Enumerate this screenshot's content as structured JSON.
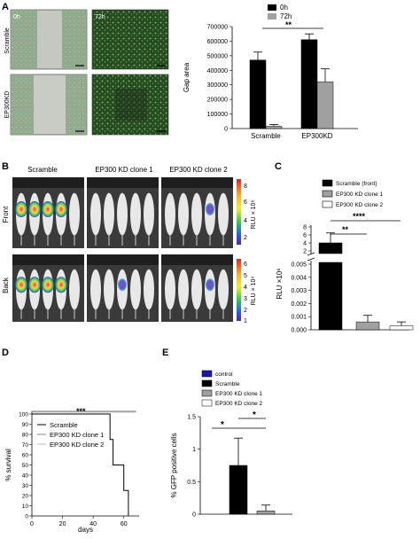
{
  "panels": {
    "A": {
      "letter": "A",
      "time_labels": [
        "0h",
        "72h"
      ],
      "row_labels": [
        "Scramble",
        "EP300KD"
      ],
      "legend": [
        "0h",
        "72h"
      ],
      "significance": "**",
      "colors": {
        "bar_0h": "#000000",
        "bar_72h": "#a0a0a0"
      }
    },
    "B": {
      "letter": "B",
      "column_labels": [
        "Scramble",
        "EP300 KD clone 1",
        "EP300 KD clone 2"
      ],
      "row_labels": [
        "Front",
        "Back"
      ],
      "scale_front": {
        "label": "RLU × 10⁶",
        "ticks": [
          "8",
          "6",
          "4",
          "2"
        ]
      },
      "scale_back": {
        "label": "RLU × 10⁴",
        "ticks": [
          "6",
          "5",
          "4",
          "3",
          "2",
          "1"
        ]
      }
    },
    "C": {
      "letter": "C",
      "legend": [
        "Scramble (front)",
        "EP300 KD clone 1",
        "EP300 KD clone 2"
      ],
      "sig": [
        "**",
        "****"
      ]
    },
    "D": {
      "letter": "D",
      "legend": [
        "Scramble",
        "EP300 KD clone 1",
        "EP300 KD clone 2"
      ],
      "sig": "***"
    },
    "E": {
      "letter": "E",
      "legend": [
        "control",
        "Scramble",
        "EP300 KD clone 1",
        "EP300 KD clone 2"
      ],
      "sig": [
        "*",
        "*"
      ],
      "colors": {
        "control": "#1a1aa8"
      }
    }
  },
  "chart_data": [
    {
      "panel": "A",
      "type": "bar",
      "categories": [
        "Scramble",
        "EP300KD"
      ],
      "series": [
        {
          "name": "0h",
          "values": [
            470000,
            610000
          ],
          "errors": [
            55000,
            40000
          ]
        },
        {
          "name": "72h",
          "values": [
            15000,
            320000
          ],
          "errors": [
            12000,
            90000
          ]
        }
      ],
      "ylabel": "Gap area",
      "ylim": [
        0,
        700000
      ],
      "yticks": [
        "0",
        "100000",
        "200000",
        "300000",
        "400000",
        "500000",
        "600000",
        "700000"
      ]
    },
    {
      "panel": "C",
      "type": "bar",
      "categories": [
        "Scramble (front)",
        "EP300 KD clone 1",
        "EP300 KD clone 2"
      ],
      "values": [
        4.0,
        0.0006,
        0.0003
      ],
      "errors": [
        2.5,
        0.0005,
        0.0003
      ],
      "ylabel": "RLU ×10⁶",
      "yticks_upper": [
        "8",
        "6",
        "4",
        "2"
      ],
      "yticks_lower": [
        "0.005",
        "0.004",
        "0.003",
        "0.002",
        "0.001",
        "0.000"
      ]
    },
    {
      "panel": "D",
      "type": "line",
      "xlabel": "days",
      "ylabel": "% survival",
      "xlim": [
        0,
        70
      ],
      "ylim": [
        0,
        100
      ],
      "xticks": [
        "0",
        "20",
        "40",
        "60"
      ],
      "yticks": [
        "0",
        "10",
        "20",
        "30",
        "40",
        "50",
        "60",
        "70",
        "80",
        "90",
        "100"
      ],
      "series": [
        {
          "name": "Scramble",
          "points": [
            [
              0,
              100
            ],
            [
              51,
              100
            ],
            [
              51,
              75
            ],
            [
              53,
              75
            ],
            [
              53,
              50
            ],
            [
              60,
              50
            ],
            [
              60,
              25
            ],
            [
              63,
              25
            ],
            [
              63,
              0
            ]
          ]
        },
        {
          "name": "EP300 KD clone 1",
          "points": [
            [
              0,
              102
            ],
            [
              68,
              102
            ]
          ]
        },
        {
          "name": "EP300 KD clone 2",
          "points": [
            [
              0,
              103
            ],
            [
              68,
              103
            ]
          ]
        }
      ]
    },
    {
      "panel": "E",
      "type": "bar",
      "categories": [
        "control",
        "Scramble",
        "EP300 KD clone 1",
        "EP300 KD clone 2"
      ],
      "values": [
        0,
        0.75,
        0.05,
        0
      ],
      "errors": [
        0,
        0.42,
        0.09,
        0
      ],
      "ylabel": "% GFP positive cells",
      "ylim": [
        0,
        1.5
      ],
      "yticks": [
        "0",
        "0.5",
        "1",
        "1.5"
      ]
    }
  ]
}
